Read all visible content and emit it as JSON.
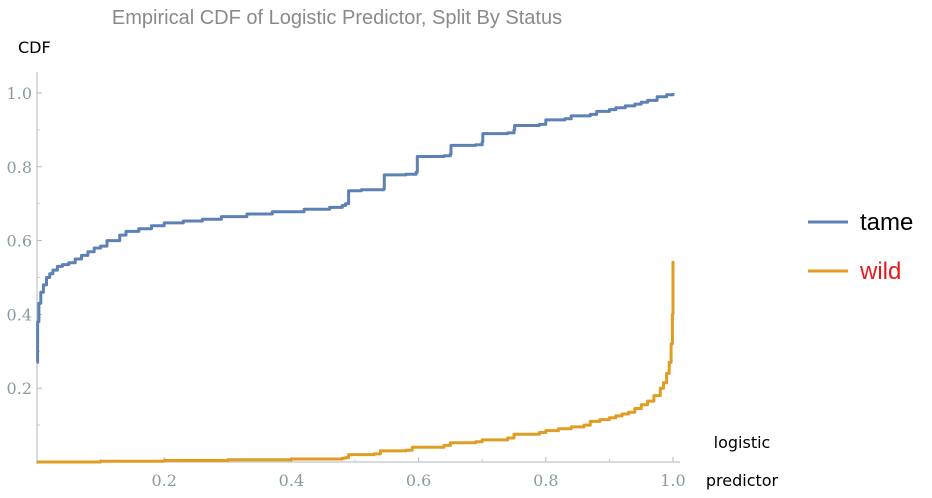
{
  "chart_data": {
    "type": "line",
    "title": "Empirical CDF of Logistic Predictor, Split By Status",
    "xlabel": [
      "logistic",
      "predictor"
    ],
    "ylabel": "CDF",
    "xlim": [
      0,
      1
    ],
    "ylim": [
      0,
      1.07
    ],
    "x_ticks": [
      0.2,
      0.4,
      0.6,
      0.8,
      1.0
    ],
    "x_tick_labels": [
      "0.2",
      "0.4",
      "0.6",
      "0.8",
      "1.0"
    ],
    "y_ticks": [
      0.2,
      0.4,
      0.6,
      0.8,
      1.0
    ],
    "y_tick_labels": [
      "0.2",
      "0.4",
      "0.6",
      "0.8",
      "1.0"
    ],
    "grid": false,
    "legend_position": "right",
    "series": [
      {
        "name": "tame",
        "color": "#5e81b5",
        "label_color": "#000000",
        "points": [
          [
            0,
            0.27
          ],
          [
            0.001,
            0.38
          ],
          [
            0.003,
            0.43
          ],
          [
            0.006,
            0.46
          ],
          [
            0.01,
            0.48
          ],
          [
            0.015,
            0.5
          ],
          [
            0.02,
            0.51
          ],
          [
            0.025,
            0.52
          ],
          [
            0.032,
            0.53
          ],
          [
            0.04,
            0.535
          ],
          [
            0.05,
            0.54
          ],
          [
            0.06,
            0.55
          ],
          [
            0.07,
            0.56
          ],
          [
            0.08,
            0.57
          ],
          [
            0.09,
            0.58
          ],
          [
            0.1,
            0.585
          ],
          [
            0.11,
            0.6
          ],
          [
            0.13,
            0.615
          ],
          [
            0.14,
            0.625
          ],
          [
            0.16,
            0.632
          ],
          [
            0.18,
            0.64
          ],
          [
            0.2,
            0.648
          ],
          [
            0.23,
            0.653
          ],
          [
            0.26,
            0.658
          ],
          [
            0.29,
            0.665
          ],
          [
            0.33,
            0.672
          ],
          [
            0.37,
            0.678
          ],
          [
            0.42,
            0.685
          ],
          [
            0.46,
            0.69
          ],
          [
            0.48,
            0.695
          ],
          [
            0.485,
            0.7
          ],
          [
            0.49,
            0.735
          ],
          [
            0.51,
            0.738
          ],
          [
            0.545,
            0.74
          ],
          [
            0.546,
            0.778
          ],
          [
            0.58,
            0.78
          ],
          [
            0.596,
            0.785
          ],
          [
            0.598,
            0.828
          ],
          [
            0.64,
            0.83
          ],
          [
            0.65,
            0.835
          ],
          [
            0.651,
            0.858
          ],
          [
            0.69,
            0.86
          ],
          [
            0.7,
            0.868
          ],
          [
            0.701,
            0.89
          ],
          [
            0.74,
            0.892
          ],
          [
            0.75,
            0.9
          ],
          [
            0.751,
            0.912
          ],
          [
            0.79,
            0.915
          ],
          [
            0.8,
            0.927
          ],
          [
            0.83,
            0.93
          ],
          [
            0.84,
            0.938
          ],
          [
            0.87,
            0.942
          ],
          [
            0.88,
            0.95
          ],
          [
            0.9,
            0.955
          ],
          [
            0.91,
            0.96
          ],
          [
            0.925,
            0.965
          ],
          [
            0.94,
            0.97
          ],
          [
            0.95,
            0.975
          ],
          [
            0.96,
            0.98
          ],
          [
            0.975,
            0.99
          ],
          [
            0.99,
            0.995
          ],
          [
            1.0,
            1.0
          ]
        ]
      },
      {
        "name": "wild",
        "color": "#e19c24",
        "label_color": "#e41a1c",
        "points": [
          [
            0,
            0.0
          ],
          [
            0.1,
            0.002
          ],
          [
            0.2,
            0.004
          ],
          [
            0.3,
            0.006
          ],
          [
            0.4,
            0.008
          ],
          [
            0.48,
            0.01
          ],
          [
            0.485,
            0.012
          ],
          [
            0.49,
            0.02
          ],
          [
            0.53,
            0.022
          ],
          [
            0.54,
            0.03
          ],
          [
            0.58,
            0.032
          ],
          [
            0.59,
            0.04
          ],
          [
            0.64,
            0.045
          ],
          [
            0.65,
            0.052
          ],
          [
            0.69,
            0.055
          ],
          [
            0.7,
            0.06
          ],
          [
            0.74,
            0.065
          ],
          [
            0.75,
            0.075
          ],
          [
            0.79,
            0.08
          ],
          [
            0.8,
            0.085
          ],
          [
            0.82,
            0.09
          ],
          [
            0.84,
            0.095
          ],
          [
            0.86,
            0.1
          ],
          [
            0.87,
            0.11
          ],
          [
            0.885,
            0.115
          ],
          [
            0.9,
            0.12
          ],
          [
            0.91,
            0.125
          ],
          [
            0.92,
            0.13
          ],
          [
            0.93,
            0.135
          ],
          [
            0.94,
            0.145
          ],
          [
            0.95,
            0.155
          ],
          [
            0.96,
            0.165
          ],
          [
            0.97,
            0.18
          ],
          [
            0.98,
            0.2
          ],
          [
            0.985,
            0.215
          ],
          [
            0.99,
            0.24
          ],
          [
            0.994,
            0.27
          ],
          [
            0.997,
            0.32
          ],
          [
            0.999,
            0.4
          ],
          [
            1.0,
            0.545
          ]
        ]
      }
    ]
  }
}
